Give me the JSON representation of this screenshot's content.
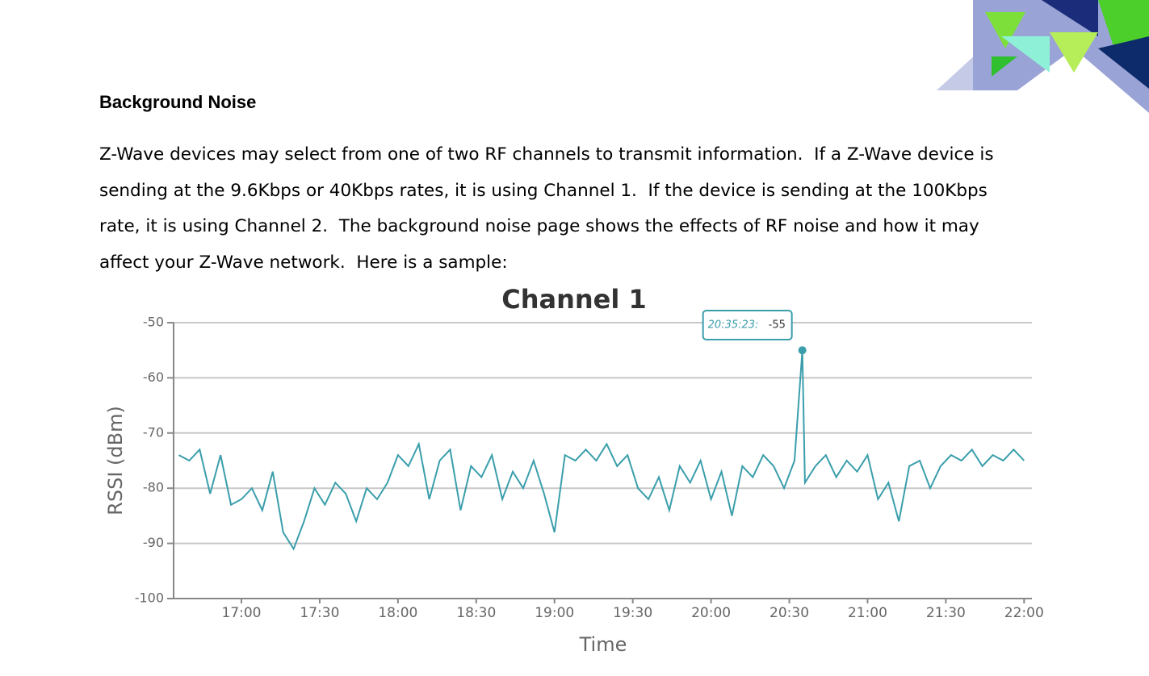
{
  "heading": "Background Noise",
  "paragraph": [
    "Z-Wave devices may select from one of two RF channels to transmit information.  If a Z-Wave device is",
    "sending at the 9.6Kbps or 40Kbps rates, it is using Channel 1.  If the device is sending at the 100Kbps",
    "rate, it is using Channel 2.  The background noise page shows the effects of RF noise and how it may",
    "affect your Z-Wave network.  Here is a sample:"
  ],
  "chart_data": {
    "type": "line",
    "title": "Channel 1",
    "xlabel": "Time",
    "ylabel": "RSSI (dBm)",
    "xlim": [
      "16:34",
      "22:03"
    ],
    "xticks": [
      "17:00",
      "17:30",
      "18:00",
      "18:30",
      "19:00",
      "19:30",
      "20:00",
      "20:30",
      "21:00",
      "21:30",
      "22:00"
    ],
    "ylim": [
      -100,
      -50
    ],
    "yticks": [
      -50,
      -60,
      -70,
      -80,
      -90,
      -100
    ],
    "grid": true,
    "tooltip": {
      "label": "20:35:23:",
      "value": -55
    },
    "x": [
      "16:36",
      "16:40",
      "16:44",
      "16:48",
      "16:52",
      "16:56",
      "17:00",
      "17:04",
      "17:08",
      "17:12",
      "17:16",
      "17:20",
      "17:24",
      "17:28",
      "17:32",
      "17:36",
      "17:40",
      "17:44",
      "17:48",
      "17:52",
      "17:56",
      "18:00",
      "18:04",
      "18:08",
      "18:12",
      "18:16",
      "18:20",
      "18:24",
      "18:28",
      "18:32",
      "18:36",
      "18:40",
      "18:44",
      "18:48",
      "18:52",
      "18:56",
      "19:00",
      "19:04",
      "19:08",
      "19:12",
      "19:16",
      "19:20",
      "19:24",
      "19:28",
      "19:32",
      "19:36",
      "19:40",
      "19:44",
      "19:48",
      "19:52",
      "19:56",
      "20:00",
      "20:04",
      "20:08",
      "20:12",
      "20:16",
      "20:20",
      "20:24",
      "20:28",
      "20:32",
      "20:35",
      "20:36",
      "20:40",
      "20:44",
      "20:48",
      "20:52",
      "20:56",
      "21:00",
      "21:04",
      "21:08",
      "21:12",
      "21:16",
      "21:20",
      "21:24",
      "21:28",
      "21:32",
      "21:36",
      "21:40",
      "21:44",
      "21:48",
      "21:52",
      "21:56",
      "22:00"
    ],
    "series": [
      {
        "name": "Channel 1",
        "color": "#3a9eab",
        "values": [
          -74,
          -75,
          -73,
          -81,
          -74,
          -83,
          -82,
          -80,
          -84,
          -77,
          -88,
          -91,
          -86,
          -80,
          -83,
          -79,
          -81,
          -86,
          -80,
          -82,
          -79,
          -74,
          -76,
          -72,
          -82,
          -75,
          -73,
          -84,
          -76,
          -78,
          -74,
          -82,
          -77,
          -80,
          -75,
          -81,
          -88,
          -74,
          -75,
          -73,
          -75,
          -72,
          -76,
          -74,
          -80,
          -82,
          -78,
          -84,
          -76,
          -79,
          -75,
          -82,
          -77,
          -85,
          -76,
          -78,
          -74,
          -76,
          -80,
          -75,
          -55,
          -79,
          -76,
          -74,
          -78,
          -75,
          -77,
          -74,
          -82,
          -79,
          -86,
          -76,
          -75,
          -80,
          -76,
          -74,
          -75,
          -73,
          -76,
          -74,
          -75,
          -73,
          -75
        ]
      }
    ]
  }
}
